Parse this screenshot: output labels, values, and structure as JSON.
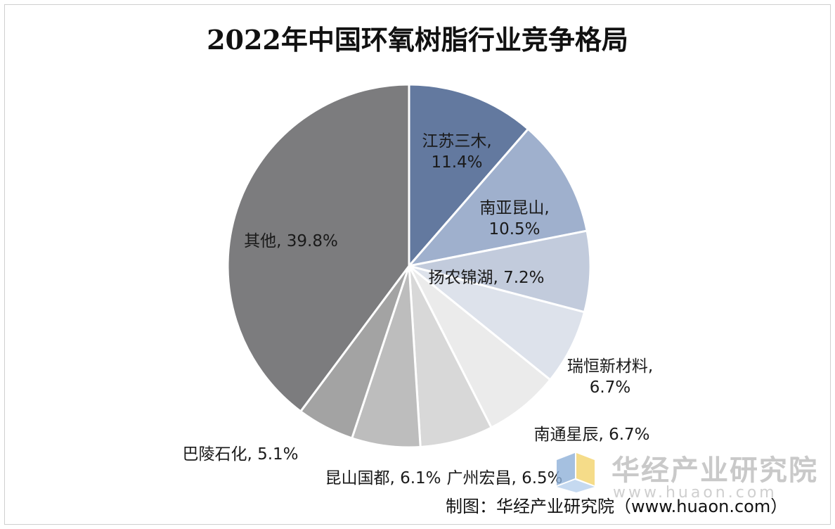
{
  "chart_data": {
    "type": "pie",
    "title": "2022年中国环氧树脂行业竞争格局",
    "unit": "%",
    "slices": [
      {
        "name": "江苏三木",
        "value": 11.4,
        "color": "#63799f",
        "label_lines": [
          "江苏三木,",
          "11.4%"
        ]
      },
      {
        "name": "南亚昆山",
        "value": 10.5,
        "color": "#9fb0cd",
        "label_lines": [
          "南亚昆山,",
          "10.5%"
        ]
      },
      {
        "name": "扬农锦湖",
        "value": 7.2,
        "color": "#c2cbdc",
        "label_lines": [
          "扬农锦湖, 7.2%"
        ]
      },
      {
        "name": "瑞恒新材料",
        "value": 6.7,
        "color": "#dde2eb",
        "label_lines": [
          "瑞恒新材料,",
          "6.7%"
        ]
      },
      {
        "name": "南通星辰",
        "value": 6.7,
        "color": "#ebebeb",
        "label_lines": [
          "南通星辰, 6.7%"
        ]
      },
      {
        "name": "广州宏昌",
        "value": 6.5,
        "color": "#d8d8d8",
        "label_lines": [
          "广州宏昌, 6.5%"
        ]
      },
      {
        "name": "昆山国都",
        "value": 6.1,
        "color": "#bdbdbd",
        "label_lines": [
          "昆山国都, 6.1%"
        ]
      },
      {
        "name": "巴陵石化",
        "value": 5.1,
        "color": "#a3a3a3",
        "label_lines": [
          "巴陵石化, 5.1%"
        ]
      },
      {
        "name": "其他",
        "value": 39.8,
        "color": "#7c7c7e",
        "label_lines": [
          "其他, 39.8%"
        ]
      }
    ]
  },
  "watermark": {
    "brand": "华经产业研究院",
    "url": "www.huaon.com"
  },
  "source": "制图：华经产业研究院（www.huaon.com）"
}
